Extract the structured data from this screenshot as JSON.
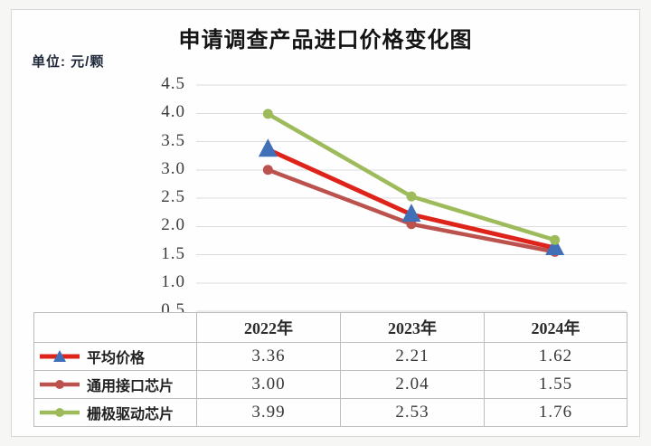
{
  "page": {
    "title": "申请调查产品进口价格变化图",
    "unit_label": "单位: 元/颗"
  },
  "chart_data": {
    "type": "line",
    "title": "申请调查产品进口价格变化图",
    "unit": "元/颗",
    "categories": [
      "2022年",
      "2023年",
      "2024年"
    ],
    "series": [
      {
        "name": "平均价格",
        "values": [
          3.36,
          2.21,
          1.62
        ],
        "display_values": [
          "3.36",
          "2.21",
          "1.62"
        ],
        "line_color": "#de241a",
        "line_width": 5,
        "marker": "triangle",
        "marker_color": "#4270b8"
      },
      {
        "name": "通用接口芯片",
        "values": [
          3.0,
          2.04,
          1.55
        ],
        "display_values": [
          "3.00",
          "2.04",
          "1.55"
        ],
        "line_color": "#bc524e",
        "line_width": 4.5,
        "marker": "circle",
        "marker_color": "#bc524e"
      },
      {
        "name": "栅极驱动芯片",
        "values": [
          3.99,
          2.53,
          1.76
        ],
        "display_values": [
          "3.99",
          "2.53",
          "1.76"
        ],
        "line_color": "#9ebb5b",
        "line_width": 4.5,
        "marker": "circle",
        "marker_color": "#9ebb5b"
      }
    ],
    "ylim": [
      0.5,
      4.5
    ],
    "yticks": [
      "4.5",
      "4.0",
      "3.5",
      "3.0",
      "2.5",
      "2.0",
      "1.5",
      "1.0",
      "0.5"
    ],
    "grid": true,
    "gridline_color": "#dcdcdc",
    "legend_position": "table-left"
  }
}
